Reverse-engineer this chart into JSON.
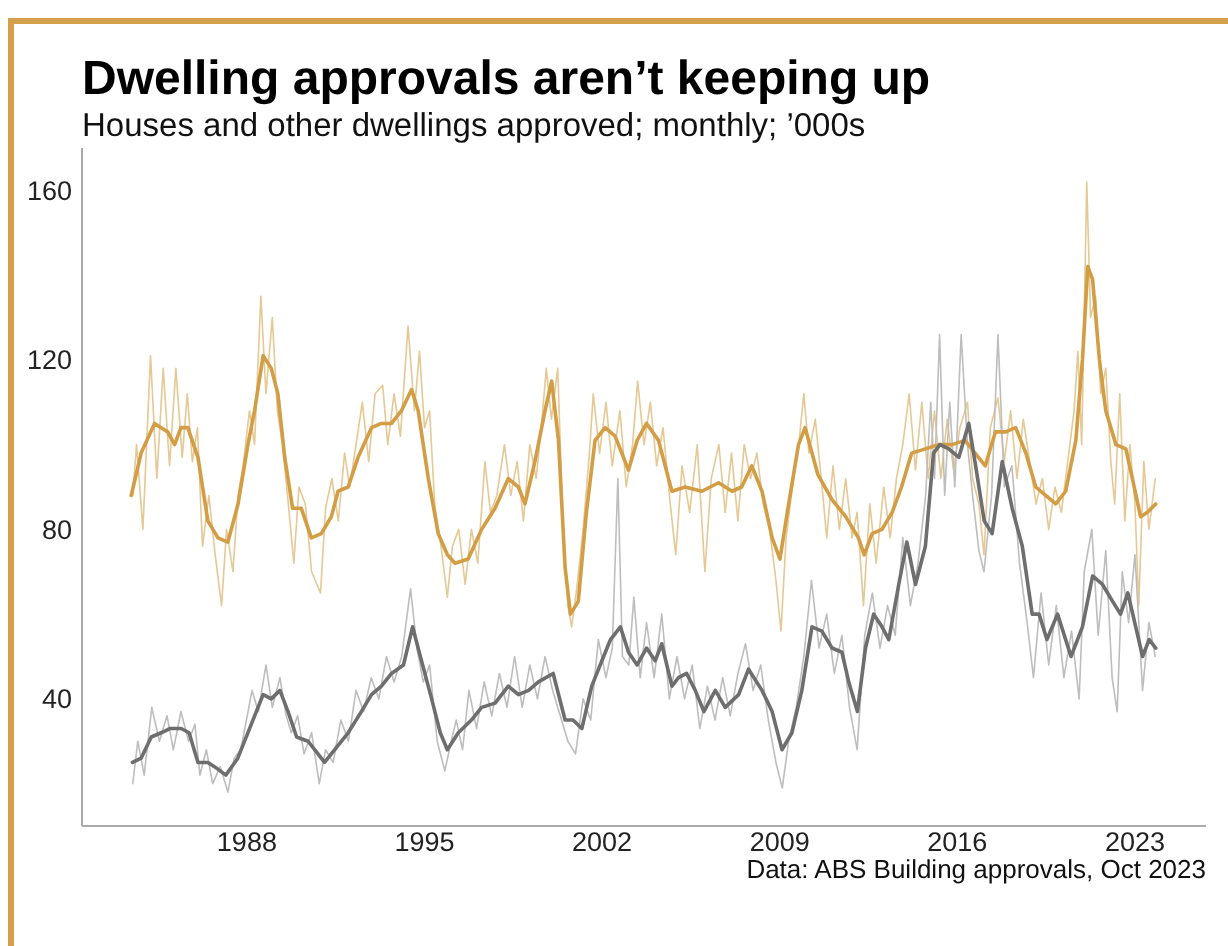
{
  "chart_data": {
    "type": "line",
    "title": "Dwelling approvals aren’t keeping up",
    "subtitle": "Houses and other dwellings approved; monthly; ’000s",
    "annotations": [
      "Data: ABS Building approvals, Oct 2023"
    ],
    "xlim": [
      1981.5,
      2025.8
    ],
    "xticks": [
      1988,
      1995,
      2002,
      2009,
      2016,
      2023
    ],
    "ylim": [
      10,
      170
    ],
    "yticks": [
      40,
      80,
      120,
      160
    ],
    "line_style": "solid",
    "series": [
      {
        "color": "#e5c894",
        "x": [
          1983.5,
          1983.65,
          1983.9,
          1984.2,
          1984.45,
          1984.7,
          1984.95,
          1985.2,
          1985.45,
          1985.65,
          1985.85,
          1986.05,
          1986.25,
          1986.5,
          1986.75,
          1987.0,
          1987.2,
          1987.45,
          1987.65,
          1987.85,
          1988.1,
          1988.3,
          1988.55,
          1988.75,
          1989.0,
          1989.2,
          1989.4,
          1989.6,
          1989.85,
          1990.05,
          1990.3,
          1990.55,
          1990.9,
          1991.1,
          1991.35,
          1991.6,
          1991.85,
          1992.05,
          1992.3,
          1992.55,
          1992.8,
          1993.05,
          1993.35,
          1993.55,
          1993.8,
          1994.05,
          1994.35,
          1994.6,
          1994.8,
          1995.0,
          1995.2,
          1995.4,
          1995.65,
          1995.9,
          1996.1,
          1996.35,
          1996.6,
          1996.85,
          1997.1,
          1997.38,
          1997.6,
          1997.85,
          1998.15,
          1998.4,
          1998.65,
          1998.9,
          1999.15,
          1999.4,
          1999.6,
          1999.8,
          2000.0,
          2000.25,
          2000.45,
          2000.65,
          2000.8,
          2001.0,
          2001.25,
          2001.5,
          2001.65,
          2001.9,
          2002.15,
          2002.4,
          2002.7,
          2002.95,
          2003.2,
          2003.4,
          2003.65,
          2003.9,
          2004.15,
          2004.4,
          2004.65,
          2004.9,
          2005.15,
          2005.45,
          2005.75,
          2006.05,
          2006.3,
          2006.6,
          2006.85,
          2007.1,
          2007.35,
          2007.6,
          2007.85,
          2008.1,
          2008.35,
          2008.6,
          2008.85,
          2009.05,
          2009.25,
          2009.5,
          2009.75,
          2009.95,
          2010.15,
          2010.4,
          2010.7,
          2010.85,
          2011.1,
          2011.35,
          2011.6,
          2011.85,
          2012.05,
          2012.3,
          2012.55,
          2012.8,
          2013.1,
          2013.35,
          2013.6,
          2013.85,
          2014.1,
          2014.35,
          2014.6,
          2014.85,
          2015.1,
          2015.35,
          2015.6,
          2015.85,
          2016.1,
          2016.4,
          2016.6,
          2016.85,
          2017.05,
          2017.3,
          2017.6,
          2017.85,
          2018.1,
          2018.35,
          2018.6,
          2018.85,
          2019.1,
          2019.35,
          2019.6,
          2019.85,
          2020.1,
          2020.35,
          2020.6,
          2020.75,
          2020.9,
          2021.1,
          2021.25,
          2021.45,
          2021.65,
          2021.85,
          2022.05,
          2022.2,
          2022.4,
          2022.6,
          2022.8,
          2023.0,
          2023.15,
          2023.35,
          2023.55,
          2023.8
        ],
        "values": [
          88,
          100,
          80,
          121,
          92,
          118,
          95,
          118,
          97,
          112,
          96,
          104,
          76,
          88,
          74,
          62,
          80,
          70,
          88,
          95,
          108,
          100,
          135,
          112,
          130,
          108,
          100,
          88,
          72,
          90,
          86,
          70,
          65,
          85,
          92,
          82,
          98,
          90,
          100,
          110,
          96,
          112,
          114,
          100,
          112,
          102,
          128,
          108,
          122,
          104,
          108,
          86,
          76,
          64,
          76,
          80,
          67,
          80,
          72,
          96,
          84,
          88,
          100,
          88,
          96,
          82,
          100,
          92,
          104,
          118,
          106,
          118,
          82,
          62,
          57,
          66,
          80,
          98,
          112,
          98,
          110,
          95,
          108,
          90,
          100,
          115,
          100,
          110,
          95,
          104,
          88,
          74,
          95,
          84,
          100,
          70,
          92,
          100,
          84,
          98,
          82,
          100,
          92,
          98,
          86,
          80,
          68,
          56,
          78,
          90,
          100,
          112,
          98,
          106,
          88,
          78,
          95,
          80,
          92,
          78,
          84,
          62,
          86,
          72,
          90,
          78,
          92,
          100,
          112,
          94,
          110,
          92,
          108,
          92,
          106,
          94,
          104,
          110,
          92,
          86,
          74,
          104,
          111,
          96,
          108,
          92,
          106,
          96,
          86,
          92,
          80,
          90,
          84,
          96,
          108,
          122,
          100,
          162,
          130,
          135,
          112,
          118,
          96,
          86,
          112,
          82,
          100,
          86,
          62,
          96,
          80,
          92
        ]
      },
      {
        "color": "#bdbdbd",
        "x": [
          1983.5,
          1983.7,
          1983.95,
          1984.25,
          1984.55,
          1984.85,
          1985.1,
          1985.4,
          1985.7,
          1985.95,
          1986.15,
          1986.4,
          1986.65,
          1986.95,
          1987.25,
          1987.5,
          1987.75,
          1987.95,
          1988.2,
          1988.45,
          1988.75,
          1989.0,
          1989.3,
          1989.55,
          1989.75,
          1990.0,
          1990.25,
          1990.55,
          1990.85,
          1991.1,
          1991.4,
          1991.7,
          1992.0,
          1992.3,
          1992.6,
          1992.9,
          1993.2,
          1993.5,
          1993.8,
          1994.1,
          1994.45,
          1994.7,
          1994.95,
          1995.2,
          1995.5,
          1995.8,
          1996.05,
          1996.25,
          1996.5,
          1996.75,
          1997.05,
          1997.35,
          1997.65,
          1997.95,
          1998.25,
          1998.55,
          1998.85,
          1999.15,
          1999.45,
          1999.75,
          2000.05,
          2000.35,
          2000.65,
          2000.95,
          2001.25,
          2001.55,
          2001.85,
          2002.15,
          2002.4,
          2002.62,
          2002.8,
          2003.05,
          2003.25,
          2003.5,
          2003.75,
          2004.05,
          2004.35,
          2004.65,
          2004.95,
          2005.25,
          2005.55,
          2005.85,
          2006.15,
          2006.45,
          2006.75,
          2007.05,
          2007.35,
          2007.65,
          2007.95,
          2008.25,
          2008.55,
          2008.85,
          2009.1,
          2009.35,
          2009.65,
          2009.95,
          2010.25,
          2010.55,
          2010.85,
          2011.15,
          2011.45,
          2011.75,
          2012.05,
          2012.35,
          2012.65,
          2012.95,
          2013.25,
          2013.55,
          2013.85,
          2014.15,
          2014.45,
          2014.75,
          2014.95,
          2015.1,
          2015.3,
          2015.5,
          2015.7,
          2015.9,
          2016.15,
          2016.4,
          2016.6,
          2016.85,
          2017.05,
          2017.35,
          2017.6,
          2017.85,
          2018.15,
          2018.45,
          2018.75,
          2019.0,
          2019.3,
          2019.6,
          2019.9,
          2020.2,
          2020.5,
          2020.8,
          2021.0,
          2021.3,
          2021.55,
          2021.85,
          2022.1,
          2022.3,
          2022.5,
          2022.75,
          2023.0,
          2023.3,
          2023.55,
          2023.8
        ],
        "values": [
          20,
          30,
          22,
          38,
          30,
          36,
          28,
          37,
          30,
          34,
          22,
          28,
          20,
          24,
          18,
          26,
          28,
          34,
          42,
          37,
          48,
          38,
          45,
          36,
          32,
          36,
          27,
          32,
          20,
          28,
          25,
          35,
          30,
          42,
          37,
          45,
          40,
          50,
          44,
          50,
          66,
          52,
          44,
          48,
          30,
          23,
          30,
          35,
          28,
          42,
          33,
          44,
          36,
          46,
          38,
          50,
          38,
          48,
          40,
          50,
          42,
          36,
          30,
          27,
          40,
          35,
          54,
          45,
          52,
          92,
          50,
          48,
          64,
          45,
          58,
          45,
          60,
          40,
          50,
          40,
          48,
          33,
          43,
          35,
          45,
          36,
          46,
          53,
          42,
          48,
          35,
          25,
          19,
          30,
          38,
          50,
          68,
          52,
          60,
          46,
          55,
          38,
          28,
          55,
          65,
          52,
          62,
          55,
          78,
          62,
          72,
          88,
          110,
          92,
          126,
          88,
          110,
          90,
          126,
          100,
          88,
          75,
          70,
          88,
          126,
          90,
          95,
          72,
          58,
          45,
          65,
          48,
          62,
          45,
          56,
          40,
          70,
          80,
          55,
          75,
          45,
          37,
          70,
          58,
          74,
          42,
          58,
          50
        ]
      },
      {
        "color": "#d29d45",
        "x": [
          1983.44,
          1983.83,
          1984.36,
          1984.88,
          1985.15,
          1985.4,
          1985.67,
          1986.07,
          1986.46,
          1986.86,
          1987.25,
          1987.65,
          1988.04,
          1988.3,
          1988.64,
          1988.96,
          1989.22,
          1989.49,
          1989.8,
          1990.14,
          1990.54,
          1990.93,
          1991.33,
          1991.59,
          1991.99,
          1992.38,
          1992.91,
          1993.3,
          1993.7,
          1994.09,
          1994.49,
          1994.75,
          1995.15,
          1995.54,
          1995.9,
          1996.2,
          1996.72,
          1997.25,
          1997.78,
          1998.3,
          1998.7,
          1998.96,
          1999.35,
          1999.75,
          2000.01,
          2000.28,
          2000.54,
          2000.75,
          2001.06,
          2001.38,
          2001.72,
          2002.12,
          2002.51,
          2003.04,
          2003.38,
          2003.75,
          2004.22,
          2004.75,
          2005.27,
          2005.93,
          2006.59,
          2007.12,
          2007.5,
          2007.9,
          2008.3,
          2008.7,
          2009.01,
          2009.35,
          2009.74,
          2010.0,
          2010.5,
          2011.06,
          2011.6,
          2012.1,
          2012.33,
          2012.64,
          2013.03,
          2013.43,
          2013.8,
          2014.2,
          2014.74,
          2015.26,
          2015.79,
          2016.3,
          2016.7,
          2017.1,
          2017.5,
          2017.9,
          2018.3,
          2018.7,
          2019.09,
          2019.48,
          2019.88,
          2020.27,
          2020.67,
          2020.93,
          2021.14,
          2021.33,
          2021.6,
          2021.85,
          2022.25,
          2022.64,
          2022.9,
          2023.22,
          2023.48,
          2023.82
        ],
        "values": [
          88,
          98,
          105,
          103,
          100,
          104,
          104,
          97,
          82,
          78,
          77,
          86,
          100,
          108,
          121,
          118,
          112,
          97,
          85,
          85,
          78,
          79,
          83,
          89,
          90,
          97,
          104,
          105,
          105,
          108,
          113,
          108,
          92,
          79,
          74,
          72,
          73,
          80,
          85,
          92,
          90,
          86,
          96,
          108,
          115,
          101,
          71,
          60,
          63,
          84,
          101,
          104,
          102,
          94,
          101,
          105,
          101,
          89,
          90,
          89,
          91,
          89,
          90,
          95,
          89,
          78,
          73,
          86,
          100,
          104,
          93,
          87,
          83,
          78,
          74,
          79,
          80,
          84,
          90,
          98,
          99,
          100,
          100,
          101,
          98,
          95,
          103,
          103,
          104,
          98,
          90,
          88,
          86,
          89,
          101,
          120,
          142,
          139,
          120,
          108,
          100,
          99,
          92,
          83,
          84,
          86
        ]
      },
      {
        "color": "#6e6e6e",
        "x": [
          1983.49,
          1983.83,
          1984.23,
          1984.62,
          1984.96,
          1985.41,
          1985.72,
          1986.07,
          1986.46,
          1986.72,
          1987.17,
          1987.64,
          1988.17,
          1988.64,
          1988.96,
          1989.3,
          1989.62,
          1989.96,
          1990.41,
          1990.8,
          1991.06,
          1991.46,
          1991.99,
          1992.51,
          1992.91,
          1993.3,
          1993.7,
          1994.17,
          1994.53,
          1994.88,
          1995.28,
          1995.62,
          1995.9,
          1996.33,
          1996.85,
          1997.25,
          1997.78,
          1998.3,
          1998.7,
          1999.1,
          1999.49,
          2000.07,
          2000.54,
          2000.85,
          2001.2,
          2001.59,
          2001.99,
          2002.33,
          2002.72,
          2003.04,
          2003.38,
          2003.75,
          2004.09,
          2004.35,
          2004.75,
          2005.01,
          2005.33,
          2005.67,
          2006.01,
          2006.46,
          2006.85,
          2007.38,
          2007.77,
          2008.3,
          2008.7,
          2009.09,
          2009.48,
          2009.87,
          2010.27,
          2010.66,
          2011.06,
          2011.45,
          2011.72,
          2012.06,
          2012.38,
          2012.7,
          2013.03,
          2013.3,
          2013.69,
          2014.01,
          2014.35,
          2014.74,
          2015.06,
          2015.32,
          2015.66,
          2016.06,
          2016.45,
          2016.72,
          2017.06,
          2017.37,
          2017.77,
          2018.16,
          2018.56,
          2018.95,
          2019.22,
          2019.53,
          2019.95,
          2020.48,
          2020.93,
          2021.33,
          2021.72,
          2022.12,
          2022.43,
          2022.72,
          2023.03,
          2023.3,
          2023.56,
          2023.82
        ],
        "values": [
          25,
          26,
          31,
          32,
          33,
          33,
          32,
          25,
          25,
          24,
          22,
          26,
          34,
          41,
          40,
          42,
          37,
          31,
          30,
          27,
          25,
          28,
          32,
          37,
          41,
          43,
          46,
          48,
          57,
          49,
          40,
          32,
          28,
          32,
          35,
          38,
          39,
          43,
          41,
          42,
          44,
          46,
          35,
          35,
          33,
          43,
          49,
          54,
          57,
          51,
          48,
          52,
          49,
          53,
          43,
          45,
          46,
          42,
          37,
          42,
          38,
          41,
          47,
          42,
          37,
          28,
          32,
          42,
          57,
          56,
          52,
          51,
          44,
          37,
          52,
          60,
          57,
          54,
          67,
          77,
          67,
          76,
          98,
          100,
          99,
          97,
          105,
          95,
          82,
          79,
          96,
          85,
          76,
          60,
          60,
          54,
          60,
          50,
          57,
          69,
          67,
          63,
          60,
          65,
          57,
          50,
          54,
          52
        ]
      }
    ]
  }
}
